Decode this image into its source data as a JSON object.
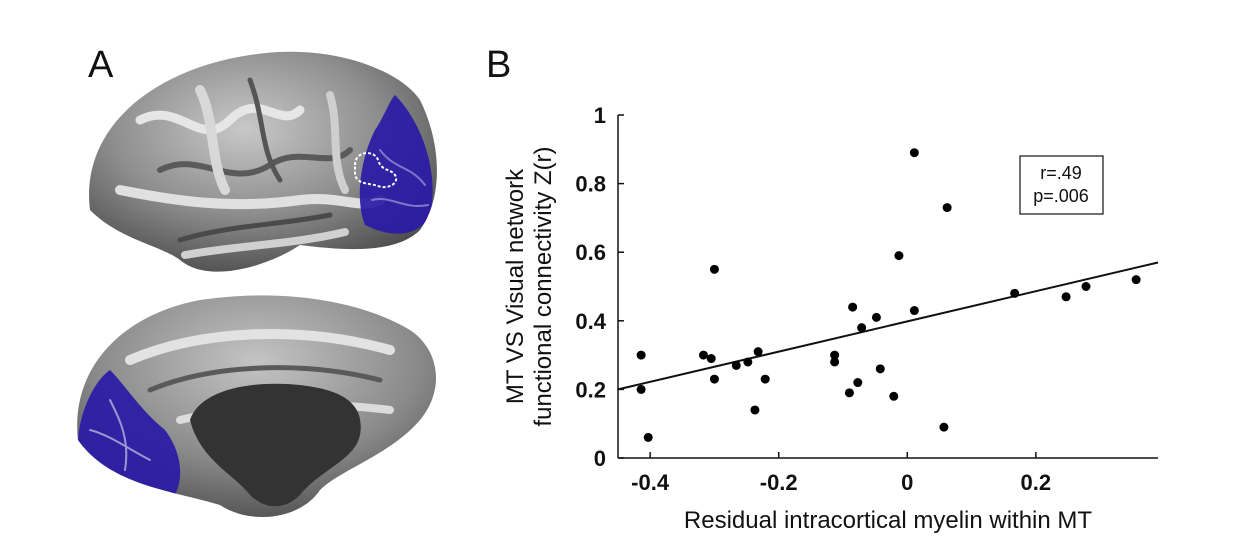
{
  "panels": {
    "a_label": "A",
    "b_label": "B"
  },
  "brain": {
    "top_view": "lateral-cortical-surface",
    "bottom_view": "medial-cortical-surface",
    "cortex_color": "#8c8c8c",
    "visual_network_color": "#2a1aa6",
    "medial_wall_color": "#333333",
    "mt_outline_color": "#ffffff"
  },
  "chart_data": {
    "type": "scatter",
    "xlabel": "Residual intracortical myelin within MT",
    "ylabel_lines": [
      "MT VS Visual network",
      "functional connectivity Z(r)"
    ],
    "xlim": [
      -0.45,
      0.39
    ],
    "ylim": [
      0,
      1
    ],
    "xticks": [
      -0.4,
      -0.2,
      0,
      0.2
    ],
    "xtick_labels": [
      "-0.4",
      "-0.2",
      "0",
      "0.2"
    ],
    "yticks": [
      0,
      0.2,
      0.4,
      0.6,
      0.8,
      1
    ],
    "ytick_labels": [
      "0",
      "0.2",
      "0.4",
      "0.6",
      "0.8",
      "1"
    ],
    "grid": false,
    "points": [
      {
        "x": -0.414,
        "y": 0.3
      },
      {
        "x": -0.414,
        "y": 0.2
      },
      {
        "x": -0.403,
        "y": 0.06
      },
      {
        "x": -0.317,
        "y": 0.3
      },
      {
        "x": -0.305,
        "y": 0.29
      },
      {
        "x": -0.3,
        "y": 0.55
      },
      {
        "x": -0.3,
        "y": 0.23
      },
      {
        "x": -0.266,
        "y": 0.27
      },
      {
        "x": -0.248,
        "y": 0.28
      },
      {
        "x": -0.232,
        "y": 0.31
      },
      {
        "x": -0.237,
        "y": 0.14
      },
      {
        "x": -0.221,
        "y": 0.23
      },
      {
        "x": -0.113,
        "y": 0.3
      },
      {
        "x": -0.113,
        "y": 0.28
      },
      {
        "x": -0.09,
        "y": 0.19
      },
      {
        "x": -0.085,
        "y": 0.44
      },
      {
        "x": -0.077,
        "y": 0.22
      },
      {
        "x": -0.071,
        "y": 0.38
      },
      {
        "x": -0.048,
        "y": 0.41
      },
      {
        "x": -0.042,
        "y": 0.26
      },
      {
        "x": -0.021,
        "y": 0.18
      },
      {
        "x": -0.013,
        "y": 0.59
      },
      {
        "x": 0.011,
        "y": 0.43
      },
      {
        "x": 0.011,
        "y": 0.89
      },
      {
        "x": 0.057,
        "y": 0.09
      },
      {
        "x": 0.062,
        "y": 0.73
      },
      {
        "x": 0.167,
        "y": 0.48
      },
      {
        "x": 0.247,
        "y": 0.47
      },
      {
        "x": 0.278,
        "y": 0.5
      },
      {
        "x": 0.356,
        "y": 0.52
      }
    ],
    "fit_line": {
      "x": [
        -0.45,
        0.39
      ],
      "y": [
        0.2,
        0.57
      ]
    },
    "annotation": {
      "lines": [
        "r=.49",
        "p=.006"
      ],
      "position": "upper-right"
    }
  }
}
